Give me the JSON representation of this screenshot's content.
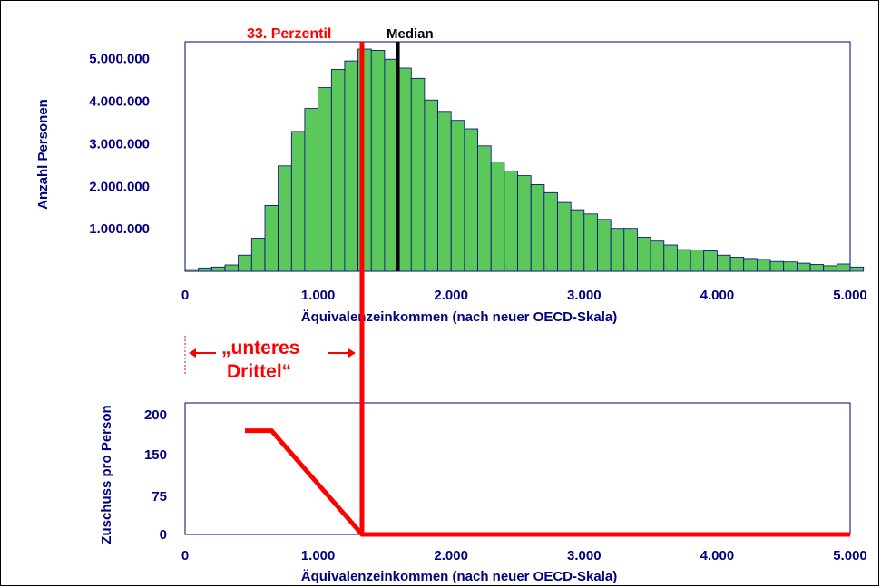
{
  "chart_data": [
    {
      "type": "bar",
      "ylabel": "Anzahl Personen",
      "xlabel": "Äquivalenzeinkommen (nach neuer OECD-Skala)",
      "x_ticks": [
        "0",
        "1.000",
        "2.000",
        "3.000",
        "4.000",
        "5.000"
      ],
      "x_tick_values": [
        0,
        1000,
        2000,
        3000,
        4000,
        5000
      ],
      "y_ticks": [
        "1.000.000",
        "2.000.000",
        "3.000.000",
        "4.000.000",
        "5.000.000"
      ],
      "y_tick_values": [
        1000000,
        2000000,
        3000000,
        4000000,
        5000000
      ],
      "xlim": [
        0,
        5000
      ],
      "ylim": [
        0,
        5400000
      ],
      "bin_width": 100,
      "bar_color": "#5bc85b",
      "values": [
        40000,
        80000,
        100000,
        150000,
        380000,
        780000,
        1550000,
        2480000,
        3290000,
        3830000,
        4320000,
        4750000,
        4950000,
        5230000,
        5200000,
        4990000,
        4780000,
        4540000,
        4030000,
        3760000,
        3550000,
        3350000,
        2950000,
        2570000,
        2360000,
        2250000,
        2040000,
        1850000,
        1620000,
        1450000,
        1350000,
        1220000,
        1010000,
        1010000,
        800000,
        710000,
        620000,
        510000,
        500000,
        480000,
        380000,
        330000,
        300000,
        280000,
        230000,
        220000,
        190000,
        160000,
        130000,
        170000,
        100000
      ],
      "markers": [
        {
          "label": "33.  Perzentil",
          "x": 1330,
          "color": "#ff0000"
        },
        {
          "label": "Median",
          "x": 1600,
          "color": "#000000"
        }
      ]
    },
    {
      "type": "line",
      "ylabel": "Zuschuss pro Person",
      "xlabel": "Äquivalenzeinkommen (nach neuer OECD-Skala)",
      "x_ticks": [
        "0",
        "1.000",
        "2.000",
        "3.000",
        "4.000",
        "5.000"
      ],
      "x_tick_values": [
        0,
        1000,
        2000,
        3000,
        4000,
        5000
      ],
      "y_ticks": [
        "0",
        "75",
        "150",
        "200"
      ],
      "y_tick_values": [
        0,
        75,
        150,
        200
      ],
      "xlim": [
        0,
        5000
      ],
      "ylim": [
        0,
        200
      ],
      "series": [
        {
          "color": "#ff0000",
          "x": [
            450,
            650,
            1330,
            1330,
            5000
          ],
          "y": [
            180,
            180,
            0,
            0,
            0
          ]
        }
      ]
    }
  ],
  "annotation": {
    "line1": "„unteres",
    "line2": "Drittel“"
  }
}
